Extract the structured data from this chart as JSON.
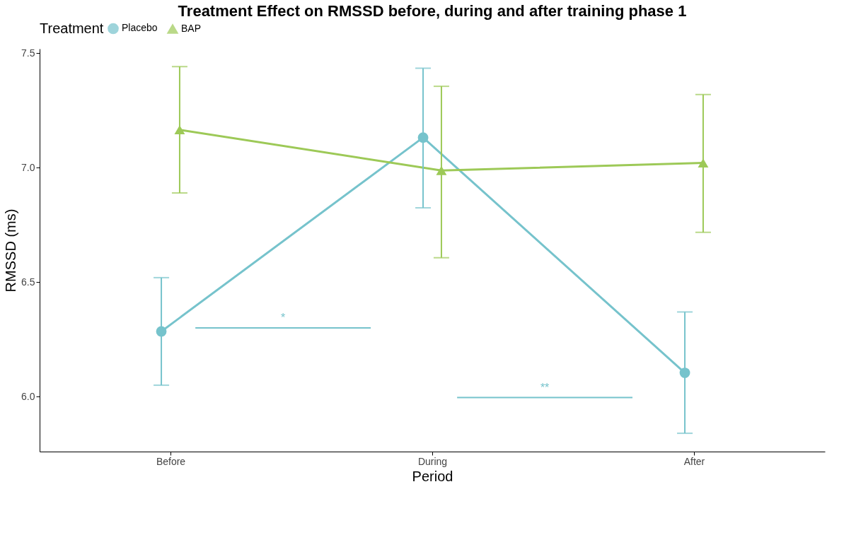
{
  "chart_data": {
    "type": "line",
    "title": "Treatment Effect on RMSSD before, during and after training phase 1",
    "xlabel": "Period",
    "ylabel": "RMSSD (ms)",
    "legend_title": "Treatment",
    "categories": [
      "Before",
      "During",
      "After"
    ],
    "series": [
      {
        "name": "Placebo",
        "color": "#76c3cc",
        "marker": "circle",
        "values": [
          6.285,
          7.132,
          6.104
        ],
        "errors": [
          [
            6.05,
            6.52
          ],
          [
            6.825,
            7.435
          ],
          [
            5.84,
            6.37
          ]
        ]
      },
      {
        "name": "BAP",
        "color": "#9dc957",
        "marker": "triangle",
        "values": [
          7.166,
          6.988,
          7.021
        ],
        "errors": [
          [
            6.89,
            7.442
          ],
          [
            6.607,
            7.356
          ],
          [
            6.718,
            7.32
          ]
        ]
      }
    ],
    "ylim": [
      5.76,
      7.52
    ],
    "yticks": [
      {
        "value": 6,
        "label": "6.0"
      },
      6.5,
      {
        "value": 7,
        "label": "7.0"
      },
      7.5
    ],
    "grid": false,
    "legend": "top",
    "line_style": "solid",
    "annotations": [
      "*",
      "**"
    ]
  }
}
